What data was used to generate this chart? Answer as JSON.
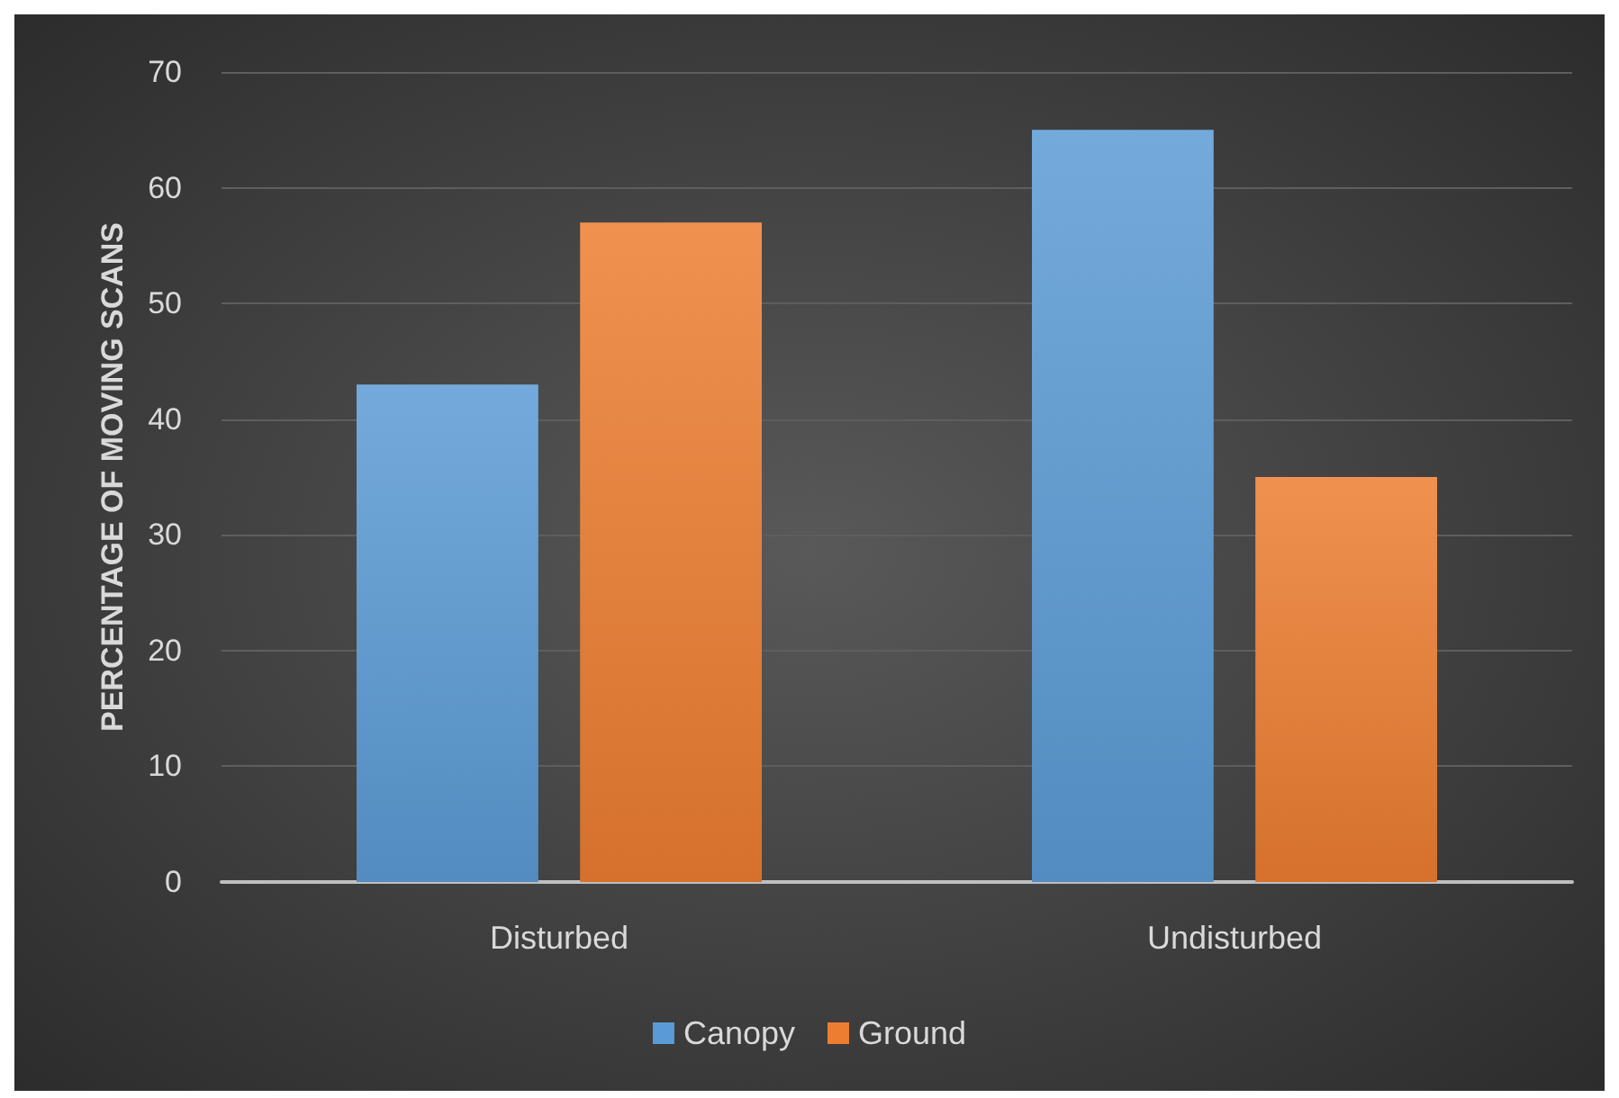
{
  "chart_data": {
    "type": "bar",
    "ylabel": "PERCENTAGE OF MOVING SCANS",
    "categories": [
      "Disturbed",
      "Undisturbed"
    ],
    "series": [
      {
        "name": "Canopy",
        "color": "#5b9bd5",
        "values": [
          43,
          65
        ]
      },
      {
        "name": "Ground",
        "color": "#ed7d31",
        "values": [
          57,
          35
        ]
      }
    ],
    "ylim": [
      0,
      70
    ],
    "yticks": [
      0,
      10,
      20,
      30,
      40,
      50,
      60,
      70
    ],
    "grid": "y",
    "legend": "bottom"
  }
}
